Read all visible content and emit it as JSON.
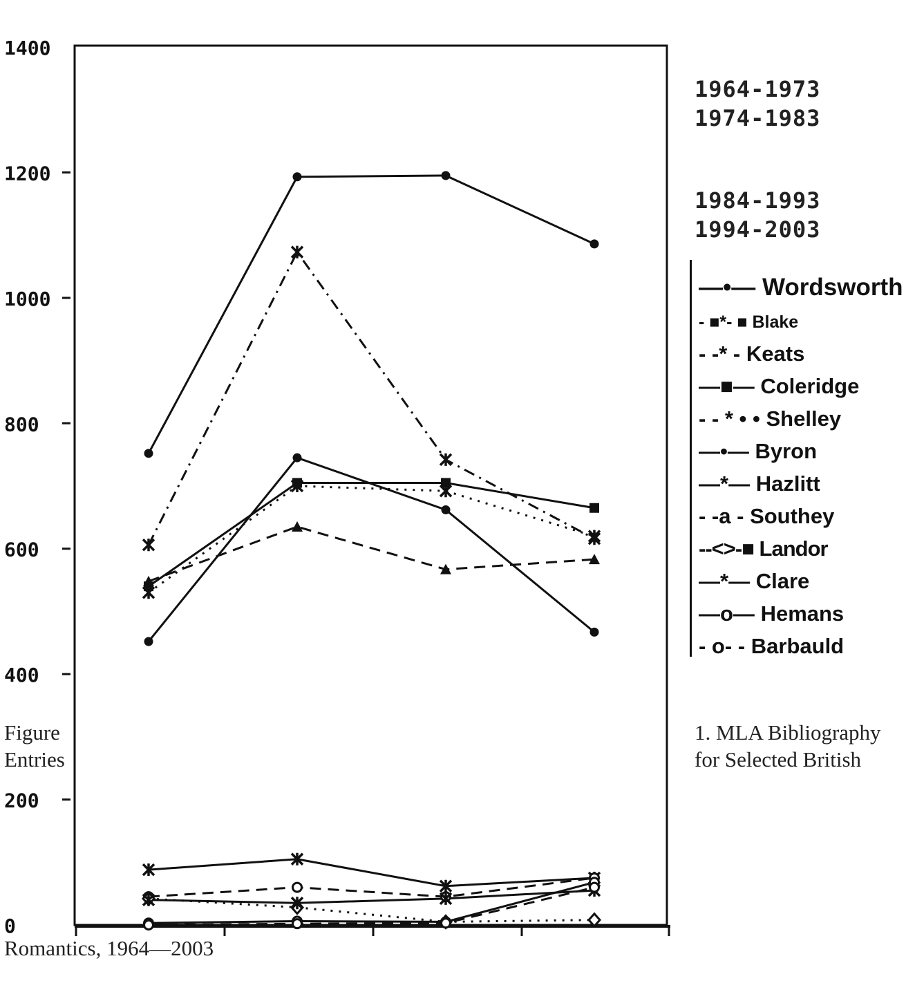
{
  "periods": [
    "1964-1973",
    "1974-1983",
    "1984-1993",
    "1994-2003"
  ],
  "caption": {
    "left": [
      "Figure",
      "Entries"
    ],
    "right": [
      "1. MLA Bibliography",
      "for Selected British"
    ],
    "bottom": "Romantics, 1964—2003"
  },
  "legend": [
    {
      "marker": "—•—",
      "name": "Wordsworth"
    },
    {
      "marker": "-  ■*- ■",
      "name": "Blake"
    },
    {
      "marker": "-  -* -",
      "name": "Keats"
    },
    {
      "marker": "—■—",
      "name": "Coleridge"
    },
    {
      "marker": "- - * • •",
      "name": "Shelley"
    },
    {
      "marker": "—•—",
      "name": "Byron"
    },
    {
      "marker": "—*—",
      "name": "Hazlitt"
    },
    {
      "marker": "-  -a -",
      "name": "Southey"
    },
    {
      "marker": "--<>-■",
      "name": "Landor"
    },
    {
      "marker": "—*—",
      "name": "Clare"
    },
    {
      "marker": "—o—",
      "name": "Hemans"
    },
    {
      "marker": "-  o- -",
      "name": "Barbauld"
    }
  ],
  "chart_data": {
    "type": "line",
    "x": [
      "1964-1973",
      "1974-1983",
      "1984-1993",
      "1994-2003"
    ],
    "ylim": [
      0,
      1400
    ],
    "yticks": [
      0,
      200,
      400,
      600,
      800,
      1000,
      1200,
      1400
    ],
    "series": [
      {
        "name": "Wordsworth",
        "values": [
          752,
          1193,
          1195,
          1086
        ],
        "marker": "dot",
        "dash": "none"
      },
      {
        "name": "Blake",
        "values": [
          606,
          1073,
          742,
          616
        ],
        "marker": "star",
        "dash": "dashdot"
      },
      {
        "name": "Keats",
        "values": [
          530,
          700,
          692,
          620
        ],
        "marker": "star",
        "dash": "dotted"
      },
      {
        "name": "Coleridge",
        "values": [
          540,
          705,
          705,
          665
        ],
        "marker": "square",
        "dash": "none"
      },
      {
        "name": "Shelley",
        "values": [
          548,
          635,
          567,
          583
        ],
        "marker": "triangle",
        "dash": "dashed"
      },
      {
        "name": "Byron",
        "values": [
          452,
          745,
          662,
          467
        ],
        "marker": "dot",
        "dash": "none"
      },
      {
        "name": "Hazlitt",
        "values": [
          88,
          105,
          62,
          75
        ],
        "marker": "star",
        "dash": "none"
      },
      {
        "name": "Southey",
        "values": [
          45,
          60,
          45,
          75
        ],
        "marker": "circle",
        "dash": "dashed"
      },
      {
        "name": "Landor",
        "values": [
          42,
          28,
          5,
          8
        ],
        "marker": "diamond",
        "dash": "dotted"
      },
      {
        "name": "Clare",
        "values": [
          40,
          35,
          42,
          55
        ],
        "marker": "star",
        "dash": "none"
      },
      {
        "name": "Hemans",
        "values": [
          3,
          6,
          5,
          68
        ],
        "marker": "circle",
        "dash": "none"
      },
      {
        "name": "Barbauld",
        "values": [
          0,
          2,
          3,
          60
        ],
        "marker": "circle",
        "dash": "dashed"
      }
    ]
  }
}
